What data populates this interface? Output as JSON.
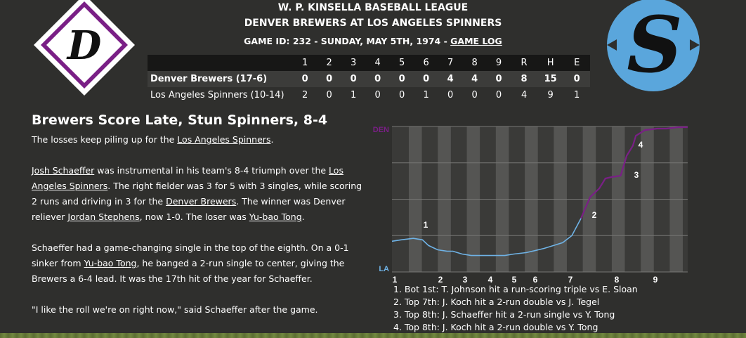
{
  "header": {
    "league": "W. P. KINSELLA BASEBALL LEAGUE",
    "matchup": "DENVER BREWERS AT LOS ANGELES SPINNERS",
    "game_info": "GAME ID: 232 - SUNDAY, MAY 5TH, 1974 - ",
    "game_log_link": "GAME LOG"
  },
  "logos": {
    "away_letter": "D",
    "home_letter": "S",
    "away_color": "#7a1f86",
    "home_color": "#5aa6dc"
  },
  "linescore": {
    "columns": [
      "1",
      "2",
      "3",
      "4",
      "5",
      "6",
      "7",
      "8",
      "9",
      "R",
      "H",
      "E"
    ],
    "rows": [
      {
        "team": "Denver Brewers (17-6)",
        "vals": [
          "0",
          "0",
          "0",
          "0",
          "0",
          "0",
          "4",
          "4",
          "0",
          "8",
          "15",
          "0"
        ]
      },
      {
        "team": "Los Angeles Spinners (10-14)",
        "vals": [
          "2",
          "0",
          "1",
          "0",
          "0",
          "1",
          "0",
          "0",
          "0",
          "4",
          "9",
          "1"
        ]
      }
    ]
  },
  "story": {
    "headline": "Brewers Score Late, Stun Spinners, 8-4",
    "p1": {
      "a": "The losses keep piling up for the ",
      "link": "Los Angeles Spinners",
      "b": "."
    },
    "p2": {
      "link1": "Josh Schaeffer",
      "t1": " was instrumental in his team's 8-4 triumph over the ",
      "link2": "Los Angeles Spinners",
      "t2": ". The right fielder was 3 for 5 with 3 singles, while scoring 2 runs and driving in 3 for the ",
      "link3": "Denver Brewers",
      "t3": ". The winner was Denver reliever ",
      "link4": "Jordan Stephens",
      "t4": ", now 1-0. The loser was ",
      "link5": "Yu-bao Tong",
      "t5": "."
    },
    "p3": {
      "t1": "Schaeffer had a game-changing single in the top of the eighth. On a 0-1 sinker from ",
      "link1": "Yu-bao Tong",
      "t2": ", he banged a 2-run single to center, giving the Brewers a 6-4 lead. It was the 17th hit of the year for Schaeffer."
    },
    "p4": "\"I like the roll we're on right now,\" said Schaeffer after the game."
  },
  "graph": {
    "top_label": "DEN",
    "bottom_label": "LA",
    "innings": [
      "1",
      "2",
      "3",
      "4",
      "5",
      "6",
      "7",
      "8",
      "9"
    ],
    "markers": [
      "1",
      "2",
      "3",
      "4"
    ],
    "away_color": "#7a1f86",
    "home_color": "#6fb3e6",
    "win_prob": [
      [
        0,
        0.8
      ],
      [
        0.3,
        0.79
      ],
      [
        0.7,
        0.78
      ],
      [
        1.0,
        0.79
      ],
      [
        1.2,
        0.83
      ],
      [
        1.5,
        0.86
      ],
      [
        1.8,
        0.87
      ],
      [
        2.0,
        0.87
      ],
      [
        2.3,
        0.89
      ],
      [
        2.6,
        0.9
      ],
      [
        3.0,
        0.9
      ],
      [
        3.3,
        0.9
      ],
      [
        3.7,
        0.9
      ],
      [
        4.0,
        0.89
      ],
      [
        4.4,
        0.88
      ],
      [
        4.8,
        0.86
      ],
      [
        5.0,
        0.85
      ],
      [
        5.3,
        0.83
      ],
      [
        5.6,
        0.81
      ],
      [
        5.9,
        0.76
      ],
      [
        6.2,
        0.64
      ],
      [
        6.5,
        0.49
      ],
      [
        6.8,
        0.43
      ],
      [
        7.0,
        0.36
      ],
      [
        7.2,
        0.35
      ],
      [
        7.5,
        0.34
      ],
      [
        7.7,
        0.2
      ],
      [
        7.9,
        0.13
      ],
      [
        8.0,
        0.06
      ],
      [
        8.3,
        0.02
      ],
      [
        8.7,
        0.01
      ],
      [
        9.0,
        0.01
      ],
      [
        9.4,
        0.0
      ],
      [
        9.7,
        0.0
      ]
    ],
    "notes": [
      "1. Bot 1st: T. Johnson hit a run-scoring triple vs E. Sloan",
      "2. Top 7th: J. Koch hit a 2-run double vs J. Tegel",
      "3. Top 8th: J. Schaeffer hit a 2-run single vs Y. Tong",
      "4. Top 8th: J. Koch hit a 2-run double vs Y. Tong"
    ]
  }
}
